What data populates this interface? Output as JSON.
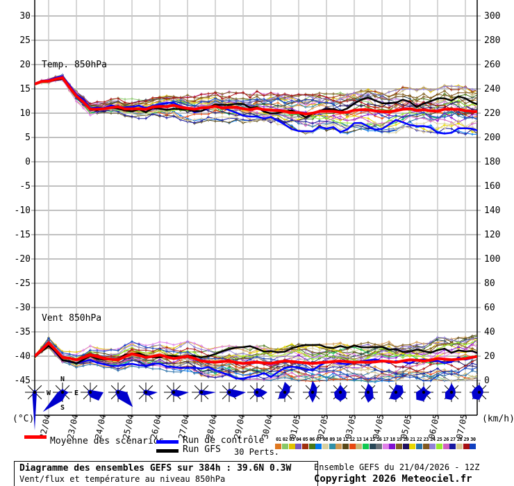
{
  "chart_data": {
    "type": "line",
    "title": "Diagramme des ensembles GEFS sur 384h : 39.6N 0.3W",
    "subtitle": "Vent/flux et température au niveau 850hPa",
    "temp_section_label": "Temp. 850hPa",
    "wind_section_label": "Vent 850hPa",
    "left_axis": {
      "unit": "(°C)",
      "max": 30,
      "min": -45,
      "step": 5
    },
    "right_axis": {
      "unit": "(km/h)",
      "max": 300,
      "min": 0,
      "step": 20
    },
    "x_dates": [
      "22/04",
      "23/04",
      "24/04",
      "25/04",
      "26/04",
      "27/04",
      "28/04",
      "29/04",
      "30/04",
      "01/05",
      "02/05",
      "03/05",
      "04/05",
      "05/05",
      "06/05",
      "07/05"
    ],
    "hours_total": 384,
    "mean": {
      "label": "Moyenne des scénarios",
      "color": "#ff0000",
      "temp": [
        16.0,
        16.6,
        17.3,
        13.5,
        10.8,
        10.9,
        11.3,
        10.9,
        10.8,
        11.4,
        11.6,
        11.0,
        11.1,
        11.4,
        11.2,
        10.9,
        11.0,
        10.6,
        10.4,
        10.1,
        10.0,
        10.4,
        10.2,
        10.6,
        10.7,
        10.3,
        10.5,
        10.9,
        10.7,
        10.4,
        10.8,
        10.5,
        10.3
      ],
      "wind": [
        20,
        31,
        19,
        17,
        21,
        18,
        17,
        22,
        19,
        21,
        18,
        20,
        16,
        15,
        16,
        14,
        15,
        14,
        16,
        15,
        14,
        15,
        16,
        15,
        15,
        16,
        15,
        17,
        16,
        18,
        17,
        18,
        20
      ]
    },
    "control": {
      "label": "Run de contrôle",
      "color": "#0000ff"
    },
    "gfs": {
      "label": "Run GFS",
      "color": "#000000"
    },
    "perturbations": {
      "count_label": "30 Perts.",
      "labels": [
        "01",
        "02",
        "03",
        "04",
        "05",
        "06",
        "07",
        "08",
        "09",
        "10",
        "11",
        "12",
        "13",
        "14",
        "15",
        "16",
        "17",
        "18",
        "19",
        "20",
        "21",
        "22",
        "23",
        "24",
        "25",
        "26",
        "27",
        "28",
        "29",
        "30"
      ],
      "colors": [
        "#e07820",
        "#88c868",
        "#e0c000",
        "#7858c0",
        "#a03010",
        "#487818",
        "#0078f0",
        "#d8d0a0",
        "#3090a8",
        "#d09850",
        "#584818",
        "#e84810",
        "#c8b878",
        "#10c850",
        "#284858",
        "#687078",
        "#e080e8",
        "#8010d0",
        "#806020",
        "#201060",
        "#e8d800",
        "#2870a8",
        "#805820",
        "#9080d8",
        "#98e830",
        "#d060c0",
        "#1818a0",
        "#d8c898",
        "#a81010",
        "#1040c0"
      ]
    },
    "temp_spread": [
      0.3,
      0.6,
      0.9,
      1.3,
      1.4,
      1.4,
      1.5,
      1.7,
      1.9,
      2.0,
      2.1,
      2.2,
      2.3,
      2.4,
      2.5,
      2.6,
      2.7,
      2.8,
      2.9,
      3.0,
      3.1,
      3.2,
      3.3,
      3.3,
      3.4,
      3.4,
      3.5,
      3.5,
      3.6,
      3.7,
      3.8,
      3.9,
      4.0
    ],
    "wind_spread": [
      2,
      6,
      5,
      5,
      6,
      6,
      7,
      8,
      8,
      9,
      9,
      10,
      10,
      10,
      10,
      11,
      11,
      11,
      11,
      12,
      12,
      12,
      12,
      12,
      13,
      13,
      13,
      13,
      13,
      14,
      14,
      14,
      14
    ],
    "wind_roses": {
      "compass": [
        "N",
        "E",
        "S",
        "W"
      ],
      "wedge_color": "#0000cc",
      "radii": [
        [
          4,
          3,
          3,
          4,
          55,
          5,
          3,
          3
        ],
        [
          5,
          4,
          9,
          6,
          12,
          40,
          7,
          4
        ],
        [
          4,
          4,
          19,
          17,
          7,
          4,
          4,
          4
        ],
        [
          4,
          4,
          13,
          30,
          9,
          4,
          4,
          4
        ],
        [
          4,
          4,
          17,
          7,
          4,
          4,
          4,
          4
        ],
        [
          4,
          5,
          22,
          9,
          5,
          4,
          4,
          4
        ],
        [
          4,
          4,
          21,
          6,
          4,
          4,
          4,
          4
        ],
        [
          5,
          6,
          24,
          11,
          5,
          4,
          4,
          4
        ],
        [
          6,
          7,
          15,
          9,
          7,
          5,
          5,
          5
        ],
        [
          15,
          11,
          7,
          5,
          9,
          13,
          7,
          5
        ],
        [
          17,
          9,
          6,
          7,
          15,
          7,
          6,
          5
        ],
        [
          11,
          7,
          9,
          11,
          13,
          11,
          9,
          6
        ],
        [
          13,
          9,
          7,
          11,
          15,
          7,
          5,
          5
        ],
        [
          11,
          13,
          11,
          9,
          11,
          13,
          6,
          5
        ],
        [
          9,
          5,
          11,
          7,
          13,
          15,
          11,
          6
        ],
        [
          13,
          7,
          6,
          7,
          11,
          13,
          9,
          6
        ],
        [
          11,
          7,
          6,
          6,
          11,
          13,
          11,
          9
        ]
      ]
    }
  },
  "footer": {
    "box_line1": "Diagramme des ensembles GEFS sur 384h : 39.6N 0.3W",
    "box_line2": "Vent/flux et température au niveau 850hPa",
    "info_line1": "Ensemble GEFS du 21/04/2026 - 12Z",
    "info_line2": "Copyright 2026 Meteociel.fr"
  }
}
